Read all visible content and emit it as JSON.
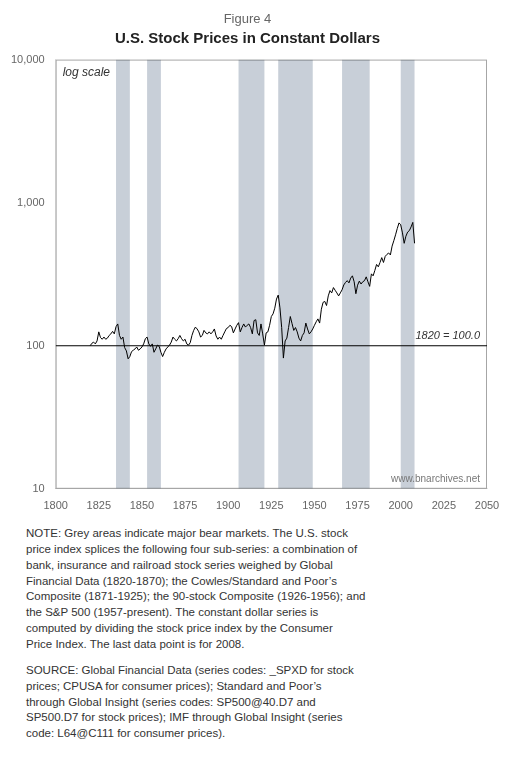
{
  "chart_data": {
    "type": "line",
    "title": "U.S. Stock Prices in Constant Dollars",
    "subtitle": "Figure 4",
    "x": [
      1820,
      1821,
      1822,
      1823,
      1824,
      1825,
      1826,
      1827,
      1828,
      1829,
      1830,
      1831,
      1832,
      1833,
      1834,
      1835,
      1836,
      1837,
      1838,
      1839,
      1840,
      1841,
      1842,
      1843,
      1844,
      1845,
      1846,
      1847,
      1848,
      1849,
      1850,
      1851,
      1852,
      1853,
      1854,
      1855,
      1856,
      1857,
      1858,
      1859,
      1860,
      1861,
      1862,
      1863,
      1864,
      1865,
      1866,
      1867,
      1868,
      1869,
      1870,
      1871,
      1872,
      1873,
      1874,
      1875,
      1876,
      1877,
      1878,
      1879,
      1880,
      1881,
      1882,
      1883,
      1884,
      1885,
      1886,
      1887,
      1888,
      1889,
      1890,
      1891,
      1892,
      1893,
      1894,
      1895,
      1896,
      1897,
      1898,
      1899,
      1900,
      1901,
      1902,
      1903,
      1904,
      1905,
      1906,
      1907,
      1908,
      1909,
      1910,
      1911,
      1912,
      1913,
      1914,
      1915,
      1916,
      1917,
      1918,
      1919,
      1920,
      1921,
      1922,
      1923,
      1924,
      1925,
      1926,
      1927,
      1928,
      1929,
      1930,
      1931,
      1932,
      1933,
      1934,
      1935,
      1936,
      1937,
      1938,
      1939,
      1940,
      1941,
      1942,
      1943,
      1944,
      1945,
      1946,
      1947,
      1948,
      1949,
      1950,
      1951,
      1952,
      1953,
      1954,
      1955,
      1956,
      1957,
      1958,
      1959,
      1960,
      1961,
      1962,
      1963,
      1964,
      1965,
      1966,
      1967,
      1968,
      1969,
      1970,
      1971,
      1972,
      1973,
      1974,
      1975,
      1976,
      1977,
      1978,
      1979,
      1980,
      1981,
      1982,
      1983,
      1984,
      1985,
      1986,
      1987,
      1988,
      1989,
      1990,
      1991,
      1992,
      1993,
      1994,
      1995,
      1996,
      1997,
      1998,
      1999,
      2000,
      2001,
      2002,
      2003,
      2004,
      2005,
      2006,
      2007,
      2008
    ],
    "values": [
      100,
      104,
      106,
      103,
      108,
      125,
      114,
      111,
      115,
      111,
      113,
      118,
      121,
      126,
      121,
      136,
      142,
      118,
      111,
      115,
      97,
      92,
      81,
      84,
      91,
      93,
      95,
      98,
      93,
      95,
      98,
      103,
      112,
      115,
      103,
      99,
      103,
      90,
      95,
      101,
      99,
      90,
      84,
      90,
      95,
      98,
      101,
      106,
      115,
      111,
      108,
      112,
      118,
      112,
      108,
      111,
      103,
      101,
      105,
      118,
      128,
      135,
      131,
      125,
      115,
      118,
      128,
      123,
      121,
      125,
      121,
      125,
      131,
      117,
      111,
      115,
      111,
      118,
      125,
      132,
      134,
      139,
      136,
      123,
      131,
      139,
      145,
      125,
      134,
      142,
      135,
      139,
      142,
      134,
      121,
      150,
      152,
      123,
      118,
      142,
      121,
      101,
      123,
      125,
      139,
      160,
      167,
      183,
      212,
      226,
      184,
      134,
      82,
      108,
      113,
      134,
      160,
      143,
      128,
      134,
      125,
      113,
      108,
      118,
      123,
      144,
      131,
      121,
      125,
      131,
      139,
      147,
      154,
      144,
      180,
      201,
      204,
      191,
      223,
      243,
      234,
      255,
      244,
      234,
      223,
      234,
      246,
      266,
      277,
      285,
      275,
      297,
      308,
      280,
      231,
      265,
      283,
      270,
      280,
      285,
      303,
      280,
      260,
      318,
      308,
      336,
      370,
      356,
      382,
      413,
      382,
      421,
      435,
      445,
      431,
      497,
      542,
      596,
      660,
      722,
      700,
      615,
      520,
      583,
      623,
      638,
      677,
      728,
      520
    ],
    "color": "#000000",
    "xlim": [
      1800,
      2050
    ],
    "ylim": [
      10,
      10000
    ],
    "xticks": [
      1800,
      1825,
      1850,
      1875,
      1900,
      1925,
      1950,
      1975,
      2000,
      2025,
      2050
    ],
    "yticks": [
      10,
      100,
      {
        "value": 1000,
        "label": "1,000"
      },
      {
        "value": 10000,
        "label": "10,000"
      }
    ],
    "log": "y",
    "grid": false,
    "baseline": {
      "value": 100,
      "label": "1820 = 100.0",
      "color": "#000000"
    },
    "shaded_ranges": [
      [
        1835,
        1843
      ],
      [
        1853,
        1861
      ],
      [
        1906,
        1921
      ],
      [
        1929,
        1949
      ],
      [
        1966,
        1982
      ],
      [
        2000,
        2008
      ]
    ],
    "shade_color": "#c8cfd8",
    "annotations": [
      "log scale",
      "www.bnarchives.net"
    ],
    "notes": [
      "NOTE: Grey areas indicate major bear markets. The U.S. stock\nprice index splices the following four sub-series: a combination of\nbank, insurance and railroad stock series weighed by Global\nFinancial Data (1820-1870); the Cowles/Standard and Poor’s\nComposite (1871-1925); the 90-stock Composite (1926-1956); and\nthe S&P 500 (1957-present). The constant dollar series is\ncomputed by dividing the stock price index by the Consumer\nPrice Index. The last data point is for 2008.",
      "SOURCE: Global Financial Data (series codes: _SPXD for stock\nprices; CPUSA for consumer prices); Standard and Poor’s\nthrough Global Insight (series codes: SP500@40.D7 and\nSP500.D7 for stock prices); IMF through Global Insight (series\ncode: L64@C111 for consumer prices)."
    ]
  }
}
